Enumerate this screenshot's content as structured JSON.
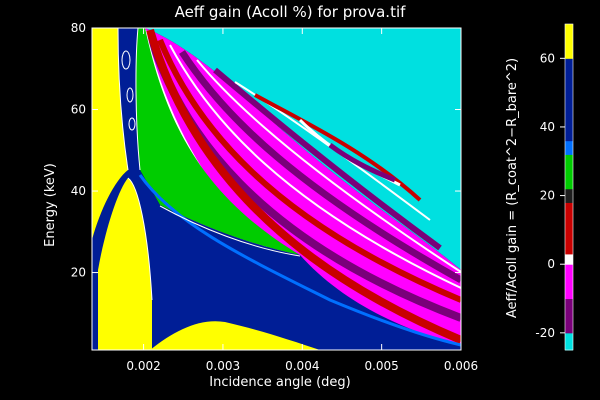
{
  "chart_data": {
    "type": "heatmap",
    "title": "Aeff gain (Acoll %) for prova.tif",
    "xlabel": "Incidence angle (deg)",
    "ylabel": "Energy (keV)",
    "xlim": [
      0.00135,
      0.006
    ],
    "ylim": [
      1,
      80
    ],
    "x_ticks": [
      0.002,
      0.003,
      0.004,
      0.005,
      0.006
    ],
    "x_tick_labels": [
      "0.002",
      "0.003",
      "0.004",
      "0.005",
      "0.006"
    ],
    "y_ticks": [
      20,
      40,
      60,
      80
    ],
    "y_tick_labels": [
      "20",
      "40",
      "60",
      "80"
    ],
    "colorbar": {
      "label": "Aeff/Acoll gain = (R_coat^2−R_bare^2)",
      "range": [
        -25,
        70
      ],
      "ticks": [
        -20,
        0,
        20,
        40,
        60
      ],
      "tick_labels": [
        "-20",
        "0",
        "20",
        "40",
        "60"
      ],
      "bands": [
        {
          "from": -25,
          "to": -20,
          "color": "#00e0e0"
        },
        {
          "from": -20,
          "to": -10,
          "color": "#7a007a"
        },
        {
          "from": -10,
          "to": 0,
          "color": "#ff00ff"
        },
        {
          "from": 0,
          "to": 3,
          "color": "#ffffff"
        },
        {
          "from": 3,
          "to": 18,
          "color": "#c80000"
        },
        {
          "from": 18,
          "to": 22,
          "color": "#1e1e1e"
        },
        {
          "from": 22,
          "to": 32,
          "color": "#00cc00"
        },
        {
          "from": 32,
          "to": 36,
          "color": "#0070ff"
        },
        {
          "from": 36,
          "to": 60,
          "color": "#001e96"
        },
        {
          "from": 60,
          "to": 70,
          "color": "#ffff00"
        }
      ]
    },
    "regions": [
      {
        "name": "upper-right-uncovered",
        "value": -25,
        "color": "#00e0e0"
      },
      {
        "name": "fringe-oscillation-zone",
        "value_range": [
          -20,
          20
        ],
        "colors": [
          "#7a007a",
          "#ff00ff",
          "#ffffff",
          "#c80000"
        ]
      },
      {
        "name": "green-band",
        "value": 25,
        "color": "#00cc00"
      },
      {
        "name": "blue-critical-band",
        "value": 45,
        "color": "#001e96"
      },
      {
        "name": "yellow-gain-peak",
        "value": 65,
        "color": "#ffff00"
      }
    ]
  }
}
